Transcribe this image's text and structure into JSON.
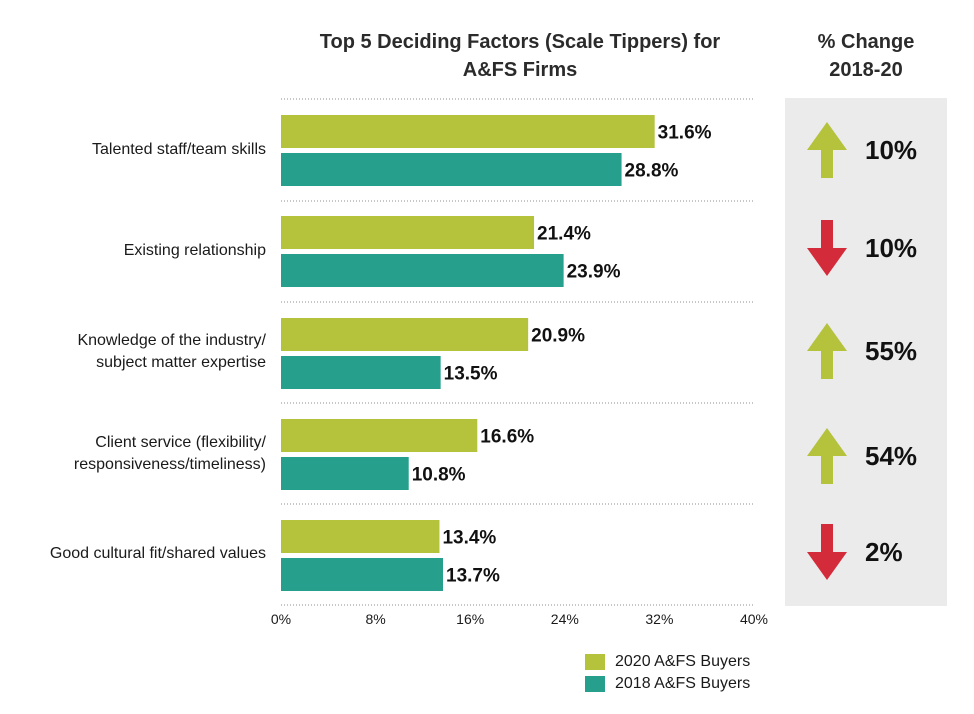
{
  "title_line1": "Top 5 Deciding Factors (Scale Tippers) for",
  "title_line2": "A&FS Firms",
  "change_header_line1": "% Change",
  "change_header_line2": "2018-20",
  "colors": {
    "series2020": "#b4c23c",
    "series2018": "#26a08d",
    "up": "#b4c23c",
    "down": "#d42b3a"
  },
  "categories": [
    {
      "label_lines": [
        "Talented staff/team skills"
      ]
    },
    {
      "label_lines": [
        "Existing relationship"
      ]
    },
    {
      "label_lines": [
        "Knowledge of the industry/",
        "subject matter expertise"
      ]
    },
    {
      "label_lines": [
        "Client service (flexibility/",
        "responsiveness/timeliness)"
      ]
    },
    {
      "label_lines": [
        "Good cultural fit/shared values"
      ]
    }
  ],
  "changes": [
    {
      "direction": "up",
      "icon": "arrow-up-icon",
      "value": "10%"
    },
    {
      "direction": "down",
      "icon": "arrow-down-icon",
      "value": "10%"
    },
    {
      "direction": "up",
      "icon": "arrow-up-icon",
      "value": "55%"
    },
    {
      "direction": "up",
      "icon": "arrow-up-icon",
      "value": "54%"
    },
    {
      "direction": "down",
      "icon": "arrow-down-icon",
      "value": "2%"
    }
  ],
  "legend": [
    {
      "label": "2020 A&FS Buyers",
      "color": "#b4c23c"
    },
    {
      "label": "2018 A&FS Buyers",
      "color": "#26a08d"
    }
  ],
  "chart_data": {
    "type": "bar",
    "orientation": "horizontal",
    "title": "Top 5 Deciding Factors (Scale Tippers) for A&FS Firms",
    "categories": [
      "Talented staff/team skills",
      "Existing relationship",
      "Knowledge of the industry/ subject matter expertise",
      "Client service (flexibility/ responsiveness/timeliness)",
      "Good cultural fit/shared values"
    ],
    "series": [
      {
        "name": "2020 A&FS Buyers",
        "values": [
          31.6,
          21.4,
          20.9,
          16.6,
          13.4
        ],
        "labels": [
          "31.6%",
          "21.4%",
          "20.9%",
          "16.6%",
          "13.4%"
        ]
      },
      {
        "name": "2018 A&FS Buyers",
        "values": [
          28.8,
          23.9,
          13.5,
          10.8,
          13.7
        ],
        "labels": [
          "28.8%",
          "23.9%",
          "13.5%",
          "10.8%",
          "13.7%"
        ]
      }
    ],
    "xlim": [
      0,
      40
    ],
    "xticks": [
      0,
      8,
      16,
      24,
      32,
      40
    ],
    "xtick_labels": [
      "0%",
      "8%",
      "16%",
      "24%",
      "32%",
      "40%"
    ],
    "grid": "dotted separators between categories",
    "legend_position": "bottom-right"
  }
}
